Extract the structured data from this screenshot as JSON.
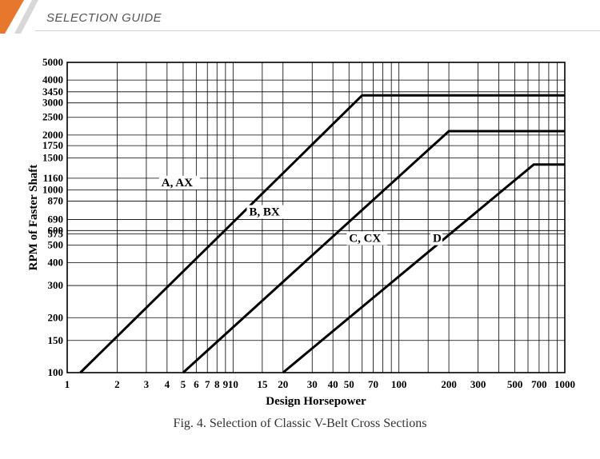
{
  "header": {
    "title": "SELECTION GUIDE"
  },
  "colors": {
    "accent": "#e8772e",
    "line": "#000000",
    "grid": "#000000"
  },
  "chart_data": {
    "type": "line",
    "x_scale": "log",
    "y_scale": "log",
    "xlabel": "Design Horsepower",
    "ylabel": "RPM of Faster Shaft",
    "xlim": [
      1,
      1000
    ],
    "ylim": [
      100,
      5000
    ],
    "x_ticks": [
      {
        "value": 1,
        "label": "1"
      },
      {
        "value": 2,
        "label": "2"
      },
      {
        "value": 3,
        "label": "3"
      },
      {
        "value": 4,
        "label": "4"
      },
      {
        "value": 5,
        "label": "5"
      },
      {
        "value": 6,
        "label": "6"
      },
      {
        "value": 7,
        "label": "7"
      },
      {
        "value": 8,
        "label": "8"
      },
      {
        "value": 9,
        "label": "9"
      },
      {
        "value": 10,
        "label": "10"
      },
      {
        "value": 15,
        "label": "15"
      },
      {
        "value": 20,
        "label": "20"
      },
      {
        "value": 30,
        "label": "30"
      },
      {
        "value": 40,
        "label": "40"
      },
      {
        "value": 50,
        "label": "50"
      },
      {
        "value": 70,
        "label": "70"
      },
      {
        "value": 100,
        "label": "100"
      },
      {
        "value": 200,
        "label": "200"
      },
      {
        "value": 300,
        "label": "300"
      },
      {
        "value": 500,
        "label": "500"
      },
      {
        "value": 700,
        "label": "700"
      },
      {
        "value": 1000,
        "label": "1000"
      }
    ],
    "x_gridlines": [
      2,
      3,
      4,
      5,
      6,
      7,
      8,
      9,
      10,
      15,
      20,
      30,
      40,
      50,
      60,
      70,
      80,
      90,
      100,
      150,
      200,
      300,
      400,
      500,
      600,
      700,
      800,
      900
    ],
    "y_ticks": [
      {
        "value": 100,
        "label": "100"
      },
      {
        "value": 150,
        "label": "150"
      },
      {
        "value": 200,
        "label": "200"
      },
      {
        "value": 300,
        "label": "300"
      },
      {
        "value": 400,
        "label": "400"
      },
      {
        "value": 500,
        "label": "500"
      },
      {
        "value": 575,
        "label": "575"
      },
      {
        "value": 600,
        "label": "600"
      },
      {
        "value": 690,
        "label": "690"
      },
      {
        "value": 870,
        "label": "870"
      },
      {
        "value": 1000,
        "label": "1000"
      },
      {
        "value": 1160,
        "label": "1160"
      },
      {
        "value": 1500,
        "label": "1500"
      },
      {
        "value": 1750,
        "label": "1750"
      },
      {
        "value": 2000,
        "label": "2000"
      },
      {
        "value": 2500,
        "label": "2500"
      },
      {
        "value": 3000,
        "label": "3000"
      },
      {
        "value": 3450,
        "label": "3450"
      },
      {
        "value": 4000,
        "label": "4000"
      },
      {
        "value": 5000,
        "label": "5000"
      }
    ],
    "series": [
      {
        "name": "A, AX",
        "points": [
          [
            1.2,
            100
          ],
          [
            60,
            3300
          ],
          [
            1000,
            3300
          ]
        ]
      },
      {
        "name": "B, BX",
        "points": [
          [
            5,
            100
          ],
          [
            200,
            2100
          ],
          [
            1000,
            2100
          ]
        ]
      },
      {
        "name": "C, CX",
        "points": [
          [
            20,
            100
          ],
          [
            650,
            1380
          ],
          [
            1000,
            1380
          ]
        ]
      }
    ],
    "annotations": [
      {
        "text": "A, AX",
        "x": 3.7,
        "y": 1050
      },
      {
        "text": "B, BX",
        "x": 12.5,
        "y": 725
      },
      {
        "text": "C, CX",
        "x": 50,
        "y": 520
      },
      {
        "text": "D",
        "x": 160,
        "y": 520
      }
    ],
    "caption": "Fig. 4. Selection of Classic V-Belt Cross Sections"
  }
}
